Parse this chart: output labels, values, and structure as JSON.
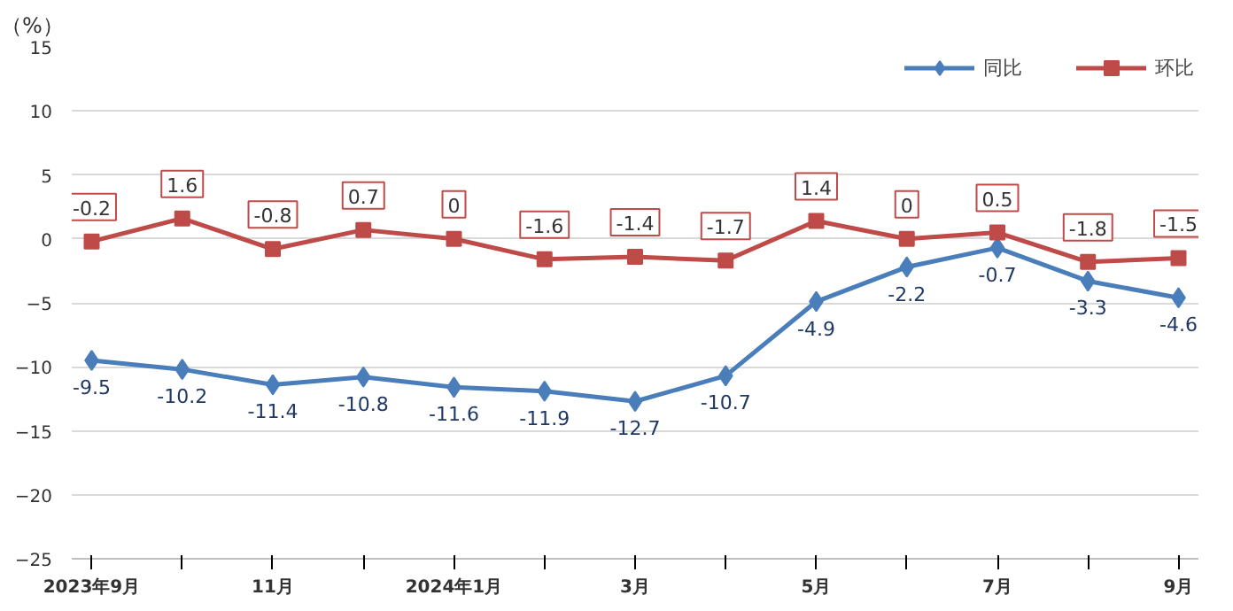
{
  "chart_data": {
    "type": "line",
    "ylabel": "（%）",
    "categories": [
      "2023年9月",
      null,
      "11月",
      null,
      "2024年1月",
      null,
      "3月",
      null,
      "5月",
      null,
      "7月",
      null,
      "9月"
    ],
    "series": [
      {
        "name": "同比",
        "color": "#4a7ebb",
        "marker": "diamond",
        "values": [
          -9.5,
          -10.2,
          -11.4,
          -10.8,
          -11.6,
          -11.9,
          -12.7,
          -10.7,
          -4.9,
          -2.2,
          -0.7,
          -3.3,
          -4.6
        ]
      },
      {
        "name": "环比",
        "color": "#be4b48",
        "marker": "square",
        "values": [
          -0.2,
          1.6,
          -0.8,
          0.7,
          0,
          -1.6,
          -1.4,
          -1.7,
          1.4,
          0,
          0.5,
          -1.8,
          -1.5
        ]
      }
    ],
    "ylim": [
      -25,
      15
    ],
    "yticks": [
      -25,
      -20,
      -15,
      -10,
      -5,
      0,
      5,
      10,
      15
    ],
    "grid": "y",
    "legend": "top right",
    "data_labels": true
  }
}
